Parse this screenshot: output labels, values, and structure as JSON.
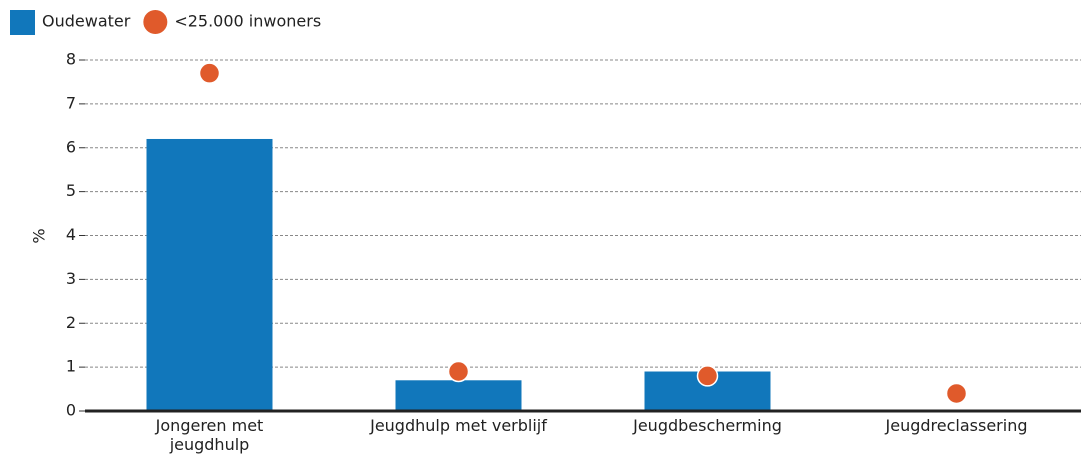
{
  "chart_data": {
    "type": "bar",
    "categories": [
      "Jongeren met jeugdhulp",
      "Jeugdhulp met verblijf",
      "Jeugdbescherming",
      "Jeugdreclassering"
    ],
    "series": [
      {
        "name": "Oudewater",
        "type": "bar",
        "color": "#1177bb",
        "values": [
          6.2,
          0.7,
          0.9,
          null
        ]
      },
      {
        "name": "<25.000 inwoners",
        "type": "scatter",
        "color": "#e05a2b",
        "values": [
          7.7,
          0.9,
          0.8,
          0.4
        ]
      }
    ],
    "ylabel": "%",
    "ylim": [
      0,
      8
    ],
    "yticks": [
      0,
      1,
      2,
      3,
      4,
      5,
      6,
      7,
      8
    ],
    "grid": true,
    "legend": "top-left"
  }
}
